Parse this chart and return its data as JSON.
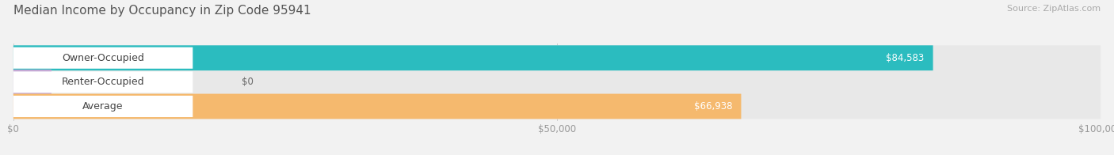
{
  "title": "Median Income by Occupancy in Zip Code 95941",
  "source_text": "Source: ZipAtlas.com",
  "categories": [
    "Owner-Occupied",
    "Renter-Occupied",
    "Average"
  ],
  "values": [
    84583,
    0,
    66938
  ],
  "bar_colors": [
    "#2bbcbf",
    "#c4a8d4",
    "#f5b96e"
  ],
  "value_labels": [
    "$84,583",
    "$0",
    "$66,938"
  ],
  "x_ticks": [
    0,
    50000,
    100000
  ],
  "x_tick_labels": [
    "$0",
    "$50,000",
    "$100,000"
  ],
  "xlim": [
    0,
    100000
  ],
  "background_color": "#f2f2f2",
  "bar_background": "#e8e8e8",
  "title_fontsize": 11,
  "source_fontsize": 8,
  "label_fontsize": 9,
  "value_fontsize": 8.5
}
